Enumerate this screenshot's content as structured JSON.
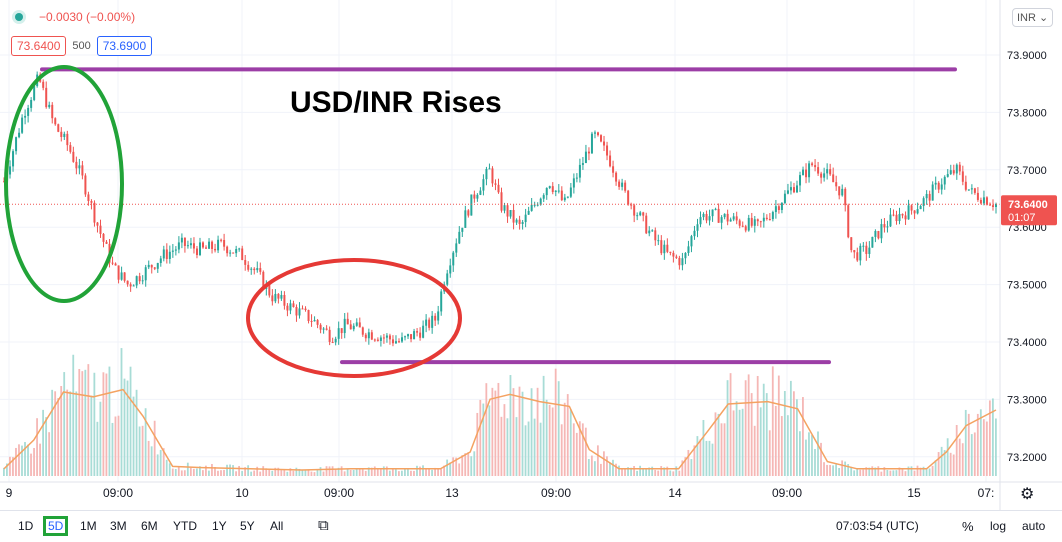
{
  "header": {
    "change": "−0.0030 (−0.00%)",
    "bid": "73.6400",
    "spread": "500",
    "ask": "73.6900",
    "currency": "INR"
  },
  "annotation": {
    "title": "USD/INR Rises"
  },
  "chart_data": {
    "type": "candlestick",
    "title": "USD/INR Rises",
    "y_ticks": [
      "73.9000",
      "73.8000",
      "73.7000",
      "73.6000",
      "73.5000",
      "73.4000",
      "73.3000",
      "73.2000"
    ],
    "x_ticks": [
      "9",
      "09:00",
      "10",
      "09:00",
      "13",
      "09:00",
      "14",
      "09:00",
      "15",
      "07:"
    ],
    "ylim": [
      73.15,
      73.95
    ],
    "last_price": {
      "value": 73.64,
      "label": "73.6400",
      "countdown": "01:07"
    },
    "resistance_level": 73.875,
    "support_level": 73.365,
    "price_path": [
      [
        0,
        73.68
      ],
      [
        0.02,
        73.8
      ],
      [
        0.035,
        73.86
      ],
      [
        0.05,
        73.78
      ],
      [
        0.065,
        73.74
      ],
      [
        0.08,
        73.68
      ],
      [
        0.095,
        73.6
      ],
      [
        0.11,
        73.53
      ],
      [
        0.125,
        73.5
      ],
      [
        0.14,
        73.52
      ],
      [
        0.16,
        73.55
      ],
      [
        0.18,
        73.57
      ],
      [
        0.2,
        73.56
      ],
      [
        0.22,
        73.57
      ],
      [
        0.24,
        73.55
      ],
      [
        0.255,
        73.52
      ],
      [
        0.27,
        73.48
      ],
      [
        0.29,
        73.46
      ],
      [
        0.31,
        73.44
      ],
      [
        0.33,
        73.41
      ],
      [
        0.345,
        73.43
      ],
      [
        0.36,
        73.42
      ],
      [
        0.38,
        73.41
      ],
      [
        0.4,
        73.4
      ],
      [
        0.42,
        73.42
      ],
      [
        0.435,
        73.44
      ],
      [
        0.445,
        73.52
      ],
      [
        0.46,
        73.6
      ],
      [
        0.475,
        73.66
      ],
      [
        0.49,
        73.7
      ],
      [
        0.5,
        73.64
      ],
      [
        0.52,
        73.6
      ],
      [
        0.535,
        73.64
      ],
      [
        0.55,
        73.68
      ],
      [
        0.565,
        73.64
      ],
      [
        0.58,
        73.7
      ],
      [
        0.595,
        73.76
      ],
      [
        0.61,
        73.72
      ],
      [
        0.625,
        73.66
      ],
      [
        0.64,
        73.62
      ],
      [
        0.655,
        73.58
      ],
      [
        0.67,
        73.55
      ],
      [
        0.685,
        73.54
      ],
      [
        0.7,
        73.62
      ],
      [
        0.72,
        73.62
      ],
      [
        0.74,
        73.61
      ],
      [
        0.76,
        73.6
      ],
      [
        0.78,
        73.64
      ],
      [
        0.8,
        73.68
      ],
      [
        0.815,
        73.71
      ],
      [
        0.83,
        73.69
      ],
      [
        0.845,
        73.66
      ],
      [
        0.855,
        73.55
      ],
      [
        0.87,
        73.56
      ],
      [
        0.885,
        73.6
      ],
      [
        0.9,
        73.62
      ],
      [
        0.915,
        73.63
      ],
      [
        0.93,
        73.65
      ],
      [
        0.945,
        73.68
      ],
      [
        0.96,
        73.7
      ],
      [
        0.975,
        73.66
      ],
      [
        0.99,
        73.65
      ],
      [
        1,
        73.64
      ]
    ],
    "volume_avg_path": [
      [
        0,
        0.06
      ],
      [
        0.03,
        0.3
      ],
      [
        0.06,
        0.7
      ],
      [
        0.09,
        0.66
      ],
      [
        0.12,
        0.72
      ],
      [
        0.14,
        0.5
      ],
      [
        0.17,
        0.08
      ],
      [
        0.2,
        0.07
      ],
      [
        0.3,
        0.05
      ],
      [
        0.35,
        0.06
      ],
      [
        0.44,
        0.06
      ],
      [
        0.47,
        0.2
      ],
      [
        0.49,
        0.64
      ],
      [
        0.51,
        0.68
      ],
      [
        0.54,
        0.62
      ],
      [
        0.57,
        0.58
      ],
      [
        0.59,
        0.22
      ],
      [
        0.62,
        0.06
      ],
      [
        0.68,
        0.06
      ],
      [
        0.71,
        0.38
      ],
      [
        0.73,
        0.6
      ],
      [
        0.77,
        0.62
      ],
      [
        0.8,
        0.56
      ],
      [
        0.83,
        0.12
      ],
      [
        0.86,
        0.06
      ],
      [
        0.93,
        0.06
      ],
      [
        0.95,
        0.2
      ],
      [
        0.97,
        0.42
      ],
      [
        1,
        0.55
      ]
    ],
    "annotations": [
      {
        "shape": "ellipse",
        "color": "#21a338",
        "note": ""
      },
      {
        "shape": "ellipse",
        "color": "#e53935",
        "note": ""
      }
    ]
  },
  "toolbar": {
    "ranges": [
      "1D",
      "5D",
      "1M",
      "3M",
      "6M",
      "YTD",
      "1Y",
      "5Y",
      "All"
    ],
    "active": "5D",
    "clock": "07:03:54 (UTC)",
    "percent": "%",
    "log": "log",
    "auto": "auto"
  },
  "colors": {
    "up": "#26a69a",
    "down": "#ef5350",
    "level": "#9c3ea6",
    "volume_ma": "#f4a261"
  }
}
